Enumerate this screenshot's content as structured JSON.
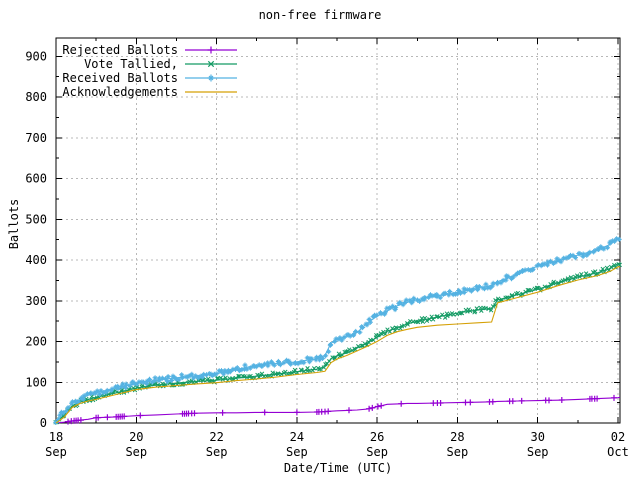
{
  "chart_data": {
    "type": "line",
    "title": "non-free firmware",
    "xlabel": "Date/Time (UTC)",
    "ylabel": "Ballots",
    "x_unit": "days since 18 Sep 00:00",
    "xlim": [
      0,
      14.05
    ],
    "ylim": [
      0,
      945
    ],
    "grid": true,
    "legend_position": "top-left",
    "y_ticks": [
      0,
      100,
      200,
      300,
      400,
      500,
      600,
      700,
      800,
      900
    ],
    "y_minor_ticks": [
      50,
      150,
      250,
      350,
      450,
      550,
      650,
      750,
      850
    ],
    "x_ticks": [
      {
        "day": 0,
        "label": "18",
        "month": "Sep"
      },
      {
        "day": 2,
        "label": "20",
        "month": "Sep"
      },
      {
        "day": 4,
        "label": "22",
        "month": "Sep"
      },
      {
        "day": 6,
        "label": "24",
        "month": "Sep"
      },
      {
        "day": 8,
        "label": "26",
        "month": "Sep"
      },
      {
        "day": 10,
        "label": "28",
        "month": "Sep"
      },
      {
        "day": 12,
        "label": "30",
        "month": "Sep"
      },
      {
        "day": 14,
        "label": "02",
        "month": "Oct"
      }
    ],
    "x_minor_days": [
      1,
      3,
      5,
      7,
      9,
      11,
      13
    ],
    "days": [
      0,
      0.2,
      0.4,
      0.6,
      0.8,
      1,
      1.5,
      2,
      2.5,
      3,
      3.5,
      4,
      4.5,
      5,
      5.5,
      6,
      6.5,
      6.7,
      6.85,
      7,
      7.25,
      7.5,
      7.75,
      8,
      8.25,
      8.5,
      8.75,
      9,
      9.5,
      10,
      10.5,
      10.85,
      11,
      11.5,
      12,
      12.5,
      13,
      13.5,
      13.8,
      14,
      14.05
    ],
    "series": [
      {
        "name": "Rejected Ballots",
        "color": "#9400D3",
        "marker": "plus",
        "dense": false,
        "values": [
          0,
          2,
          5,
          7,
          9,
          13,
          15,
          18,
          20,
          22,
          24,
          25,
          25,
          26,
          26,
          26,
          27,
          28,
          29,
          30,
          31,
          32,
          34,
          40,
          46,
          47,
          48,
          48,
          49,
          50,
          51,
          52,
          53,
          54,
          55,
          56,
          58,
          60,
          61,
          62,
          63
        ],
        "marker_days": [
          0.3,
          0.38,
          0.45,
          0.5,
          0.55,
          0.62,
          1.0,
          1.05,
          1.28,
          1.5,
          1.55,
          1.6,
          1.65,
          1.7,
          2.1,
          3.15,
          3.2,
          3.25,
          3.3,
          3.38,
          3.45,
          4.15,
          5.2,
          6.0,
          6.5,
          6.55,
          6.62,
          6.7,
          6.78,
          7.3,
          7.8,
          7.88,
          8.02,
          8.1,
          8.6,
          9.4,
          9.5,
          9.58,
          10.2,
          10.32,
          10.8,
          10.88,
          11.3,
          11.38,
          11.6,
          12.2,
          12.28,
          12.6,
          13.3,
          13.35,
          13.42,
          13.48,
          13.9
        ]
      },
      {
        "name": "Vote Tallied,",
        "color": "#149B64",
        "marker": "cross",
        "dense": true,
        "values": [
          0,
          20,
          42,
          52,
          58,
          63,
          74,
          86,
          93,
          98,
          102,
          105,
          110,
          115,
          120,
          126,
          132,
          138,
          158,
          165,
          172,
          184,
          196,
          210,
          225,
          234,
          243,
          250,
          260,
          270,
          277,
          281,
          302,
          315,
          328,
          344,
          358,
          369,
          379,
          391,
          392
        ],
        "marker_days": []
      },
      {
        "name": "Received Ballots",
        "color": "#54B2E2",
        "marker": "asterisk",
        "dense": true,
        "values": [
          0,
          28,
          48,
          58,
          68,
          74,
          86,
          97,
          105,
          111,
          116,
          121,
          131,
          142,
          146,
          150,
          158,
          166,
          196,
          205,
          212,
          222,
          245,
          262,
          275,
          288,
          296,
          303,
          312,
          321,
          330,
          338,
          347,
          365,
          385,
          398,
          412,
          425,
          438,
          452,
          455
        ],
        "marker_days": []
      },
      {
        "name": "Acknowledgements",
        "color": "#D5A006",
        "marker": "none",
        "dense": false,
        "values": [
          0,
          14,
          38,
          48,
          54,
          58,
          70,
          82,
          88,
          92,
          96,
          99,
          104,
          108,
          113,
          119,
          124,
          127,
          148,
          157,
          166,
          177,
          188,
          200,
          215,
          224,
          230,
          235,
          240,
          243,
          246,
          248,
          295,
          308,
          321,
          337,
          351,
          362,
          372,
          383,
          384
        ],
        "marker_days": []
      }
    ]
  },
  "colors": {
    "background": "#FFFFFF",
    "frame": "#000000",
    "grid": "#B8B8B8",
    "text": "#000000"
  }
}
